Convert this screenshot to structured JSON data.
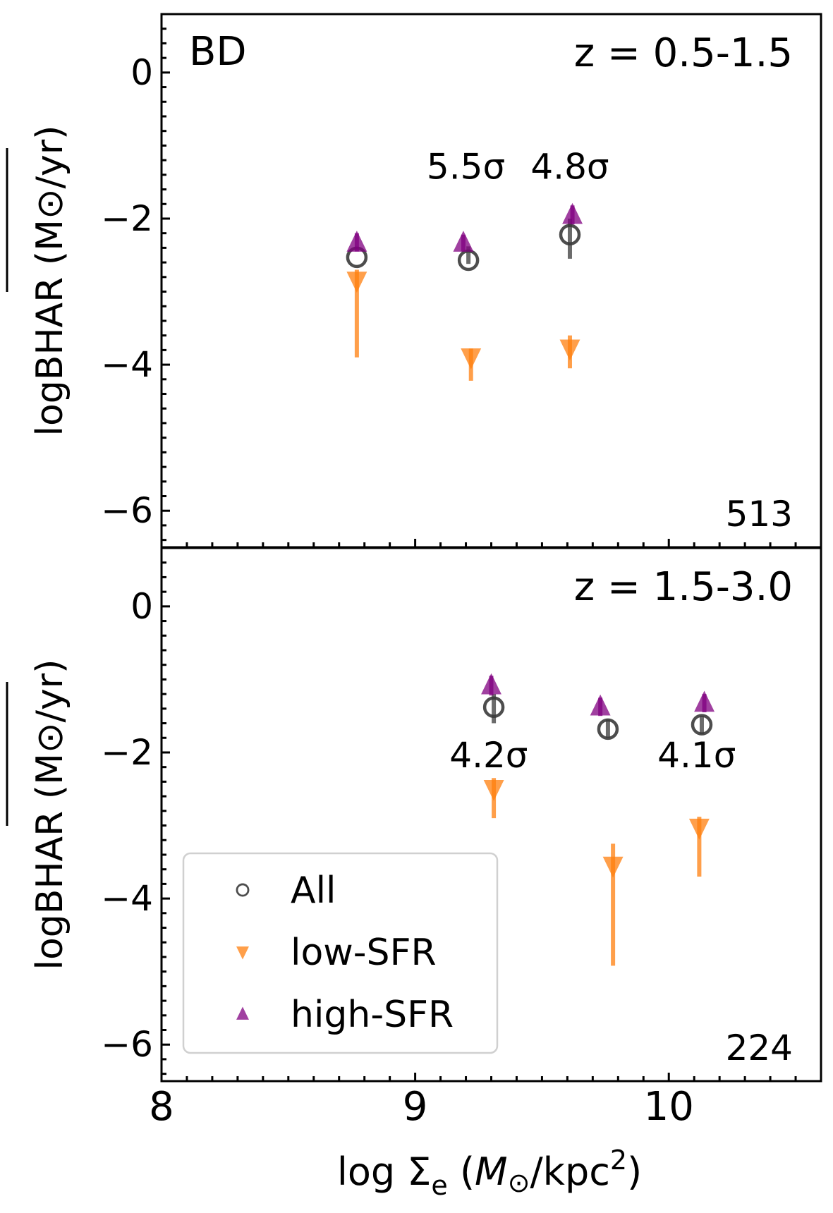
{
  "colors": {
    "all": "#3a3a3a",
    "low": "#ff7f0e",
    "high": "#800080",
    "axis": "#000000"
  },
  "shared": {
    "xlabel": "log Σe (M⊙/kpc²)",
    "xlim": [
      8.0,
      10.6
    ],
    "xticks": [
      8,
      9,
      10
    ],
    "xtick_labels": [
      "8",
      "9",
      "10"
    ]
  },
  "chart_data": [
    {
      "type": "scatter",
      "ylabel": "logBHAR (M⊙/yr)",
      "ylim": [
        -6.5,
        0.8
      ],
      "yticks": [
        0,
        -2,
        -4,
        -6
      ],
      "ytick_labels": [
        "0",
        "−2",
        "−4",
        "−6"
      ],
      "panel_label": "BD",
      "redshift_label": "z = 0.5-1.5",
      "count_label": "513",
      "series": [
        {
          "name": "All",
          "marker": "circle",
          "points": [
            {
              "x": 8.77,
              "y": -2.53,
              "lo": -2.53,
              "hi": -2.53
            },
            {
              "x": 9.21,
              "y": -2.57,
              "lo": -2.62,
              "hi": -2.38
            },
            {
              "x": 9.61,
              "y": -2.22,
              "lo": -2.55,
              "hi": -2.0
            }
          ]
        },
        {
          "name": "low-SFR",
          "marker": "triangle-down",
          "points": [
            {
              "x": 8.77,
              "y": -2.85,
              "lo": -3.9,
              "hi": -2.7
            },
            {
              "x": 9.22,
              "y": -3.9,
              "lo": -4.22,
              "hi": -3.78
            },
            {
              "x": 9.61,
              "y": -3.78,
              "lo": -4.05,
              "hi": -3.6
            }
          ]
        },
        {
          "name": "high-SFR",
          "marker": "triangle-up",
          "points": [
            {
              "x": 8.77,
              "y": -2.33,
              "lo": -2.45,
              "hi": -2.2
            },
            {
              "x": 9.19,
              "y": -2.33,
              "lo": -2.45,
              "hi": -2.22
            },
            {
              "x": 9.62,
              "y": -1.95,
              "lo": -2.08,
              "hi": -1.82
            }
          ]
        }
      ],
      "annotations": [
        {
          "text": "5.5σ",
          "x": 9.2,
          "y": -1.3
        },
        {
          "text": "4.8σ",
          "x": 9.61,
          "y": -1.3
        }
      ]
    },
    {
      "type": "scatter",
      "ylabel": "logBHAR (M⊙/yr)",
      "ylim": [
        -6.5,
        0.8
      ],
      "yticks": [
        0,
        -2,
        -4,
        -6
      ],
      "ytick_labels": [
        "0",
        "−2",
        "−4",
        "−6"
      ],
      "redshift_label": "z = 1.5-3.0",
      "count_label": "224",
      "series": [
        {
          "name": "All",
          "marker": "circle",
          "points": [
            {
              "x": 9.31,
              "y": -1.38,
              "lo": -1.6,
              "hi": -1.2
            },
            {
              "x": 9.76,
              "y": -1.68,
              "lo": -1.8,
              "hi": -1.55
            },
            {
              "x": 10.13,
              "y": -1.62,
              "lo": -1.75,
              "hi": -1.5
            }
          ]
        },
        {
          "name": "low-SFR",
          "marker": "triangle-down",
          "points": [
            {
              "x": 9.31,
              "y": -2.5,
              "lo": -2.9,
              "hi": -2.35
            },
            {
              "x": 9.78,
              "y": -3.55,
              "lo": -4.92,
              "hi": -3.25
            },
            {
              "x": 10.12,
              "y": -3.03,
              "lo": -3.7,
              "hi": -2.88
            }
          ]
        },
        {
          "name": "high-SFR",
          "marker": "triangle-up",
          "points": [
            {
              "x": 9.3,
              "y": -1.08,
              "lo": -1.22,
              "hi": -0.95
            },
            {
              "x": 9.73,
              "y": -1.37,
              "lo": -1.5,
              "hi": -1.25
            },
            {
              "x": 10.14,
              "y": -1.32,
              "lo": -1.45,
              "hi": -1.2
            }
          ]
        }
      ],
      "annotations": [
        {
          "text": "4.2σ",
          "x": 9.29,
          "y": -2.05
        },
        {
          "text": "4.1σ",
          "x": 10.11,
          "y": -2.05
        }
      ],
      "legend": {
        "position": "lower-left",
        "entries": [
          {
            "label": "All",
            "marker": "circle"
          },
          {
            "label": "low-SFR",
            "marker": "triangle-down"
          },
          {
            "label": "high-SFR",
            "marker": "triangle-up"
          }
        ]
      }
    }
  ]
}
